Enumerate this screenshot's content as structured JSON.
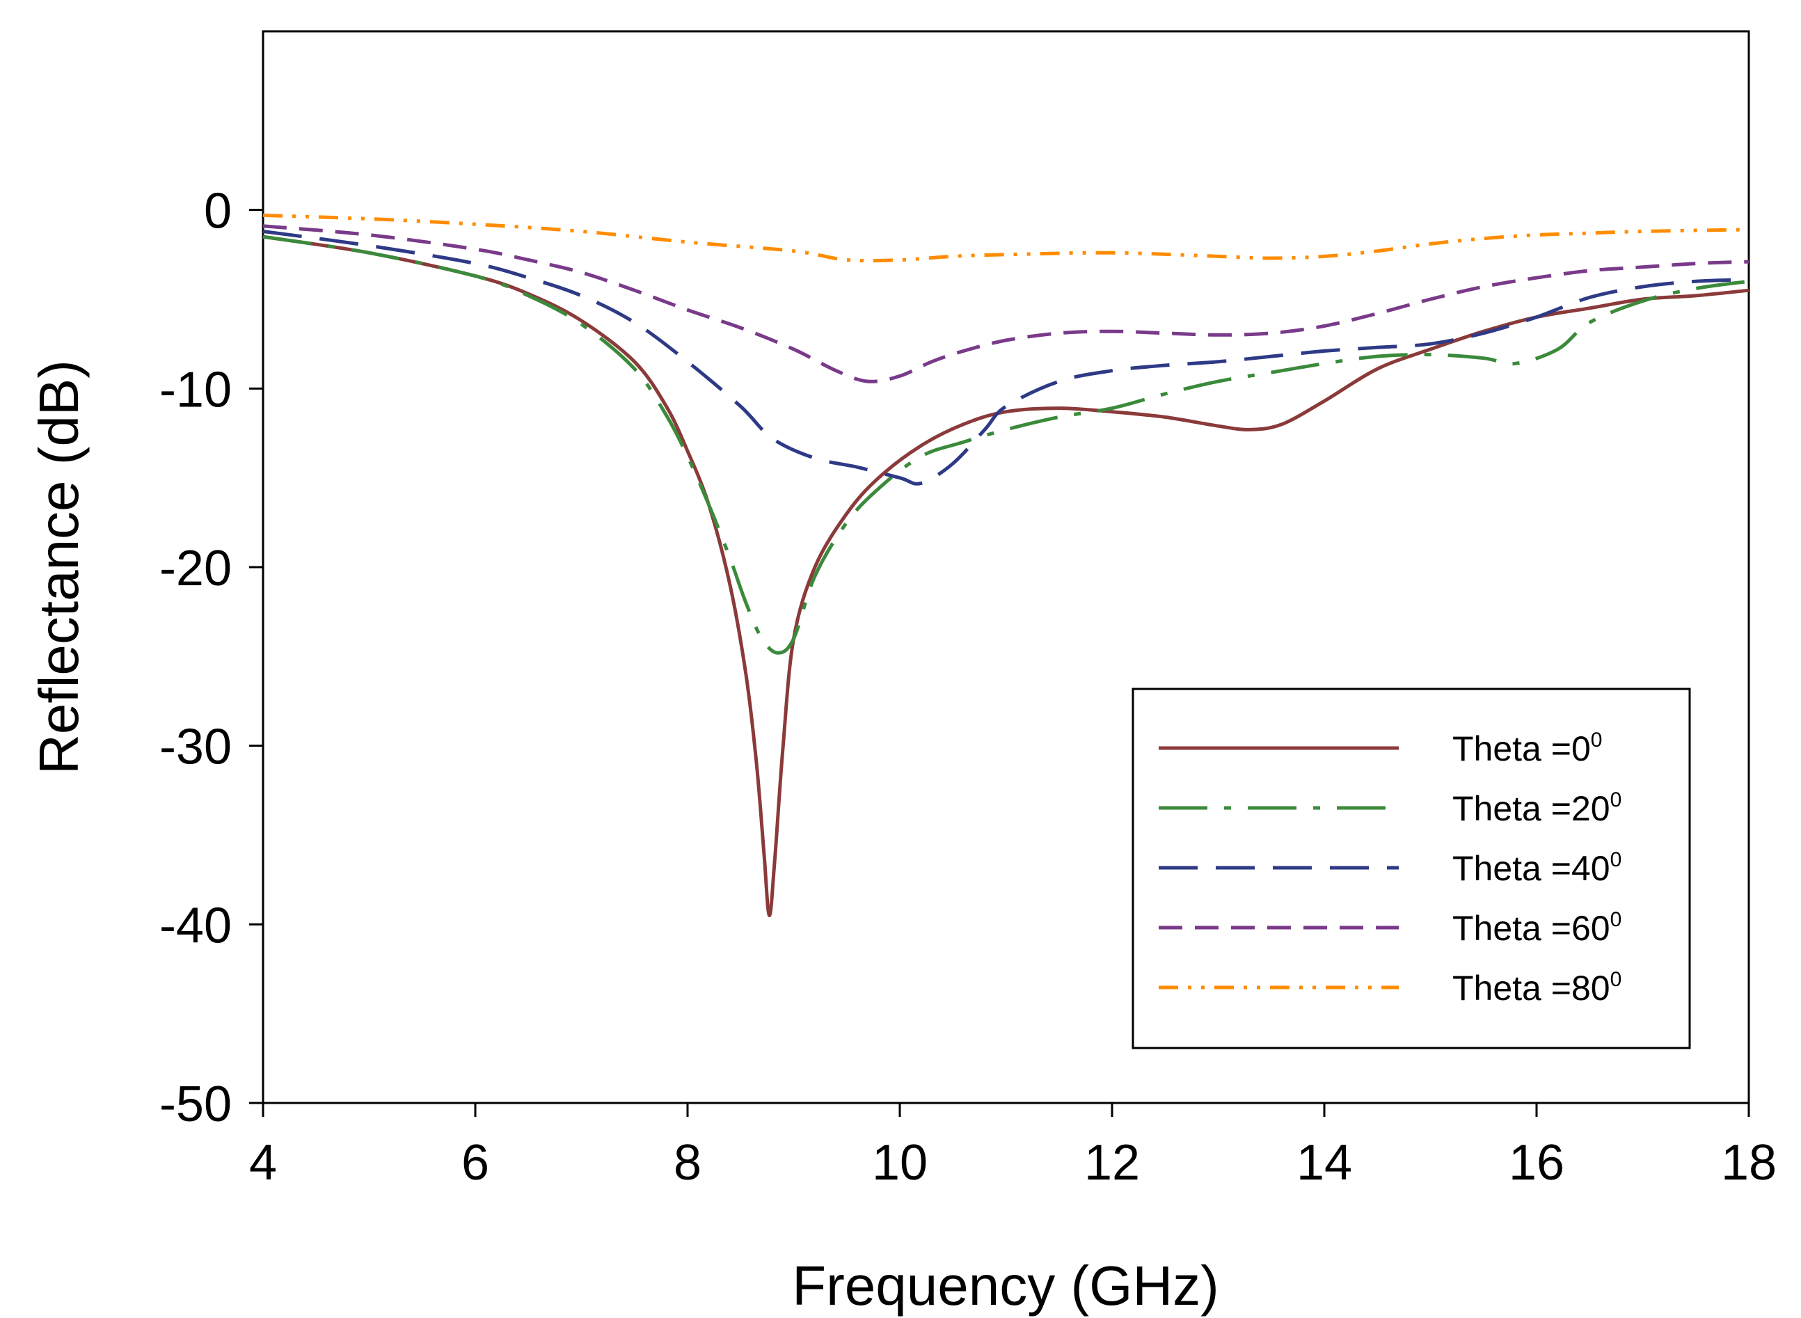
{
  "chart_data": {
    "type": "line",
    "title": "",
    "xlabel": "Frequency (GHz)",
    "ylabel": "Reflectance (dB)",
    "xlim": [
      4,
      18
    ],
    "ylim": [
      -50,
      10
    ],
    "xticks": [
      4,
      6,
      8,
      10,
      12,
      14,
      16,
      18
    ],
    "yticks": [
      -50,
      -40,
      -30,
      -20,
      -10,
      0
    ],
    "xtick_labels": [
      "4",
      "6",
      "8",
      "10",
      "12",
      "14",
      "16",
      "18"
    ],
    "ytick_labels": [
      "-50",
      "-40",
      "-30",
      "-20",
      "-10",
      "0"
    ],
    "grid": false,
    "legend_position": "bottom-right",
    "series": [
      {
        "name": "Theta =0",
        "label_prefix": "Theta =0",
        "superscript": "0",
        "color": "#8b3a3a",
        "dash": "solid",
        "points": [
          [
            4,
            -1.5
          ],
          [
            5,
            -2.4
          ],
          [
            6,
            -3.7
          ],
          [
            6.5,
            -4.7
          ],
          [
            7,
            -6.2
          ],
          [
            7.5,
            -8.5
          ],
          [
            7.8,
            -11
          ],
          [
            8,
            -13.5
          ],
          [
            8.2,
            -16.5
          ],
          [
            8.4,
            -21
          ],
          [
            8.55,
            -26
          ],
          [
            8.65,
            -31
          ],
          [
            8.72,
            -36
          ],
          [
            8.77,
            -39.5
          ],
          [
            8.82,
            -36.5
          ],
          [
            8.9,
            -30
          ],
          [
            9.0,
            -24
          ],
          [
            9.2,
            -20
          ],
          [
            9.5,
            -17
          ],
          [
            9.8,
            -15
          ],
          [
            10.2,
            -13.2
          ],
          [
            10.6,
            -12
          ],
          [
            11.0,
            -11.3
          ],
          [
            11.5,
            -11.1
          ],
          [
            12,
            -11.3
          ],
          [
            12.5,
            -11.6
          ],
          [
            13,
            -12.1
          ],
          [
            13.3,
            -12.3
          ],
          [
            13.6,
            -12
          ],
          [
            14,
            -10.7
          ],
          [
            14.5,
            -8.9
          ],
          [
            15,
            -7.8
          ],
          [
            15.5,
            -6.8
          ],
          [
            16,
            -6.0
          ],
          [
            16.5,
            -5.5
          ],
          [
            17,
            -5
          ],
          [
            17.5,
            -4.8
          ],
          [
            18,
            -4.5
          ]
        ]
      },
      {
        "name": "Theta =20",
        "label_prefix": "Theta =20",
        "superscript": "0",
        "color": "#3b8a3b",
        "dash": "long-dash-dot",
        "points": [
          [
            4,
            -1.5
          ],
          [
            5,
            -2.4
          ],
          [
            6,
            -3.7
          ],
          [
            6.5,
            -4.8
          ],
          [
            7,
            -6.4
          ],
          [
            7.5,
            -8.9
          ],
          [
            7.8,
            -11.5
          ],
          [
            8,
            -13.8
          ],
          [
            8.2,
            -16.5
          ],
          [
            8.4,
            -19.5
          ],
          [
            8.55,
            -22
          ],
          [
            8.7,
            -24
          ],
          [
            8.85,
            -24.8
          ],
          [
            9.0,
            -24
          ],
          [
            9.2,
            -20.5
          ],
          [
            9.5,
            -17.5
          ],
          [
            9.8,
            -15.6
          ],
          [
            10.2,
            -13.8
          ],
          [
            10.6,
            -13
          ],
          [
            11,
            -12.3
          ],
          [
            11.5,
            -11.6
          ],
          [
            12,
            -11.1
          ],
          [
            12.5,
            -10.3
          ],
          [
            13,
            -9.6
          ],
          [
            13.5,
            -9.1
          ],
          [
            14,
            -8.6
          ],
          [
            14.5,
            -8.2
          ],
          [
            15,
            -8.1
          ],
          [
            15.5,
            -8.3
          ],
          [
            15.8,
            -8.6
          ],
          [
            16.2,
            -7.8
          ],
          [
            16.5,
            -6.3
          ],
          [
            17,
            -5.1
          ],
          [
            17.5,
            -4.4
          ],
          [
            18,
            -4
          ]
        ]
      },
      {
        "name": "Theta =40",
        "label_prefix": "Theta =40",
        "superscript": "0",
        "color": "#2e3a86",
        "dash": "long-dash",
        "points": [
          [
            4,
            -1.2
          ],
          [
            5,
            -2
          ],
          [
            6,
            -3
          ],
          [
            6.5,
            -3.8
          ],
          [
            7,
            -4.8
          ],
          [
            7.5,
            -6.3
          ],
          [
            8,
            -8.5
          ],
          [
            8.5,
            -11
          ],
          [
            8.8,
            -12.8
          ],
          [
            9.2,
            -13.9
          ],
          [
            9.6,
            -14.4
          ],
          [
            10,
            -15
          ],
          [
            10.2,
            -15.3
          ],
          [
            10.5,
            -14.2
          ],
          [
            10.8,
            -12.3
          ],
          [
            11,
            -11
          ],
          [
            11.5,
            -9.6
          ],
          [
            12,
            -9
          ],
          [
            12.5,
            -8.7
          ],
          [
            13,
            -8.5
          ],
          [
            13.5,
            -8.2
          ],
          [
            14,
            -7.9
          ],
          [
            14.5,
            -7.7
          ],
          [
            15,
            -7.5
          ],
          [
            15.5,
            -6.9
          ],
          [
            16,
            -6
          ],
          [
            16.5,
            -4.9
          ],
          [
            17,
            -4.3
          ],
          [
            17.5,
            -4
          ],
          [
            18,
            -3.9
          ]
        ]
      },
      {
        "name": "Theta =60",
        "label_prefix": "Theta =60",
        "superscript": "0",
        "color": "#7a3a8a",
        "dash": "dash",
        "points": [
          [
            4,
            -0.9
          ],
          [
            5,
            -1.4
          ],
          [
            6,
            -2.2
          ],
          [
            6.5,
            -2.8
          ],
          [
            7,
            -3.5
          ],
          [
            7.5,
            -4.5
          ],
          [
            8,
            -5.6
          ],
          [
            8.5,
            -6.6
          ],
          [
            9,
            -7.8
          ],
          [
            9.4,
            -9
          ],
          [
            9.7,
            -9.6
          ],
          [
            10,
            -9.3
          ],
          [
            10.3,
            -8.5
          ],
          [
            10.6,
            -7.9
          ],
          [
            11,
            -7.3
          ],
          [
            11.5,
            -6.9
          ],
          [
            12,
            -6.8
          ],
          [
            12.5,
            -6.9
          ],
          [
            13,
            -7
          ],
          [
            13.5,
            -6.9
          ],
          [
            14,
            -6.5
          ],
          [
            14.5,
            -5.8
          ],
          [
            15,
            -5
          ],
          [
            15.5,
            -4.3
          ],
          [
            16,
            -3.8
          ],
          [
            16.5,
            -3.4
          ],
          [
            17,
            -3.2
          ],
          [
            17.5,
            -3
          ],
          [
            18,
            -2.9
          ]
        ]
      },
      {
        "name": "Theta =80",
        "label_prefix": "Theta =80",
        "superscript": "0",
        "color": "#ff8c00",
        "dash": "dash-dot-dot",
        "points": [
          [
            4,
            -0.3
          ],
          [
            5,
            -0.5
          ],
          [
            6,
            -0.8
          ],
          [
            7,
            -1.2
          ],
          [
            8,
            -1.8
          ],
          [
            9,
            -2.3
          ],
          [
            9.5,
            -2.8
          ],
          [
            10,
            -2.8
          ],
          [
            10.5,
            -2.6
          ],
          [
            11,
            -2.5
          ],
          [
            12,
            -2.4
          ],
          [
            13,
            -2.6
          ],
          [
            13.5,
            -2.7
          ],
          [
            14,
            -2.6
          ],
          [
            14.5,
            -2.3
          ],
          [
            15,
            -1.9
          ],
          [
            15.5,
            -1.6
          ],
          [
            16,
            -1.4
          ],
          [
            16.5,
            -1.3
          ],
          [
            17,
            -1.2
          ],
          [
            18,
            -1.1
          ]
        ]
      }
    ]
  }
}
